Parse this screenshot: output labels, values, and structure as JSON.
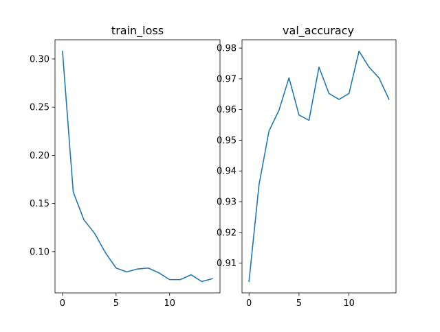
{
  "chart_data": [
    {
      "type": "line",
      "title": "train_loss",
      "xlabel": "",
      "ylabel": "",
      "x": [
        0,
        1,
        2,
        3,
        4,
        5,
        6,
        7,
        8,
        9,
        10,
        11,
        12,
        13,
        14
      ],
      "series": [
        {
          "values": [
            0.308,
            0.162,
            0.133,
            0.119,
            0.099,
            0.083,
            0.079,
            0.082,
            0.083,
            0.078,
            0.071,
            0.071,
            0.076,
            0.069,
            0.072
          ],
          "color": "#1f77b4"
        }
      ],
      "xticks": [
        0,
        5,
        10
      ],
      "xtick_labels": [
        "0",
        "5",
        "10"
      ],
      "yticks": [
        0.1,
        0.15,
        0.2,
        0.25,
        0.3
      ],
      "ytick_labels": [
        "0.10",
        "0.15",
        "0.20",
        "0.25",
        "0.30"
      ],
      "xlim": [
        -0.7,
        14.7
      ],
      "ylim": [
        0.0572,
        0.3199
      ],
      "grid": false,
      "legend": "none"
    },
    {
      "type": "line",
      "title": "val_accuracy",
      "xlabel": "",
      "ylabel": "",
      "x": [
        0,
        1,
        2,
        3,
        4,
        5,
        6,
        7,
        8,
        9,
        10,
        11,
        12,
        13,
        14
      ],
      "series": [
        {
          "values": [
            0.904,
            0.9355,
            0.953,
            0.9598,
            0.9703,
            0.9582,
            0.9565,
            0.9738,
            0.9652,
            0.9633,
            0.9652,
            0.979,
            0.9738,
            0.9703,
            0.9633
          ],
          "color": "#1f77b4"
        }
      ],
      "xticks": [
        0,
        5,
        10
      ],
      "xtick_labels": [
        "0",
        "5",
        "10"
      ],
      "yticks": [
        0.91,
        0.92,
        0.93,
        0.94,
        0.95,
        0.96,
        0.97,
        0.98
      ],
      "ytick_labels": [
        "0.91",
        "0.92",
        "0.93",
        "0.94",
        "0.95",
        "0.96",
        "0.97",
        "0.98"
      ],
      "xlim": [
        -0.7,
        14.7
      ],
      "ylim": [
        0.9003,
        0.9827
      ],
      "grid": false,
      "legend": "none"
    }
  ]
}
